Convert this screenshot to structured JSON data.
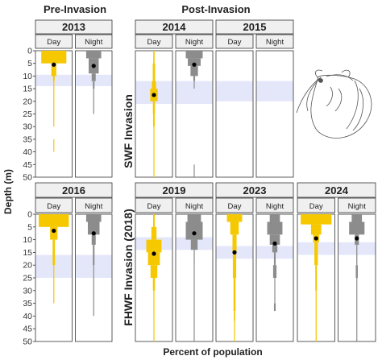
{
  "header": {
    "pre": "Pre-Invasion",
    "post": "Post-Invasion"
  },
  "axis": {
    "ylabel": "Depth (m)",
    "xlabel": "Percent of population"
  },
  "row_labels": {
    "row1": "SWF Invasion",
    "row2": "FHWF Invasion (2018)"
  },
  "colors": {
    "day": "#F5C800",
    "night": "#8C8C8C",
    "thermocline": "#E4E7FA",
    "strip": "#F0F0F0",
    "point": "#000000"
  },
  "chart_data": {
    "type": "bar",
    "orientation": "horizontal-mirrored",
    "ylim": [
      0,
      50
    ],
    "yticks": [
      0,
      5,
      10,
      15,
      20,
      25,
      30,
      35,
      40,
      45,
      50
    ],
    "ylabel": "Depth (m)",
    "xlabel": "Percent of population",
    "panel_labels": [
      "Day",
      "Night"
    ],
    "years": [
      {
        "year": "2013",
        "thermocline": [
          9.5,
          14
        ],
        "day": {
          "mean_depth": 5.5,
          "profile": [
            [
              0,
              5,
              0.75
            ],
            [
              5,
              10,
              0.15
            ],
            [
              10,
              12,
              0.05
            ],
            [
              12,
              20,
              0.03
            ],
            [
              20,
              30,
              0.015
            ],
            [
              35,
              40,
              0.01
            ]
          ]
        },
        "night": {
          "mean_depth": 6.0,
          "profile": [
            [
              0,
              3,
              0.45
            ],
            [
              3,
              9,
              0.3
            ],
            [
              9,
              12,
              0.12
            ],
            [
              12,
              15,
              0.05
            ],
            [
              15,
              25,
              0.02
            ]
          ]
        }
      },
      {
        "year": "2014",
        "thermocline": [
          12,
          21
        ],
        "day": {
          "mean_depth": 17.5,
          "profile": [
            [
              0,
              5,
              0.04
            ],
            [
              5,
              12,
              0.07
            ],
            [
              12,
              15,
              0.12
            ],
            [
              15,
              20,
              0.22
            ],
            [
              20,
              25,
              0.06
            ],
            [
              25,
              30,
              0.05
            ],
            [
              30,
              50,
              0.025
            ]
          ]
        },
        "night": {
          "mean_depth": 5.5,
          "profile": [
            [
              0,
              3,
              0.5
            ],
            [
              3,
              6,
              0.38
            ],
            [
              6,
              10,
              0.22
            ],
            [
              10,
              12,
              0.05
            ],
            [
              12,
              15,
              0.02
            ],
            [
              45,
              50,
              0.005
            ]
          ]
        }
      },
      {
        "year": "2015",
        "thermocline": [
          12,
          20
        ],
        "day": {
          "mean_depth": null,
          "profile": []
        },
        "night": {
          "mean_depth": null,
          "profile": []
        }
      },
      {
        "year": "2016",
        "thermocline": [
          16,
          25
        ],
        "day": {
          "mean_depth": 6.5,
          "profile": [
            [
              0,
              5,
              0.9
            ],
            [
              5,
              10,
              0.22
            ],
            [
              10,
              20,
              0.07
            ],
            [
              20,
              35,
              0.03
            ]
          ]
        },
        "night": {
          "mean_depth": 7.5,
          "profile": [
            [
              0,
              3,
              0.45
            ],
            [
              3,
              8,
              0.35
            ],
            [
              8,
              12,
              0.12
            ],
            [
              12,
              20,
              0.05
            ],
            [
              20,
              40,
              0.01
            ]
          ]
        }
      },
      {
        "year": "2019",
        "thermocline": [
          9,
          14
        ],
        "day": {
          "mean_depth": 15.5,
          "profile": [
            [
              0,
              5,
              0.05
            ],
            [
              5,
              10,
              0.15
            ],
            [
              10,
              15,
              0.45
            ],
            [
              15,
              20,
              0.35
            ],
            [
              20,
              25,
              0.2
            ],
            [
              25,
              30,
              0.06
            ],
            [
              30,
              40,
              0.03
            ],
            [
              40,
              50,
              0.02
            ]
          ]
        },
        "night": {
          "mean_depth": 7.5,
          "profile": [
            [
              0,
              3,
              0.4
            ],
            [
              3,
              10,
              0.5
            ],
            [
              10,
              14,
              0.2
            ],
            [
              14,
              20,
              0.03
            ],
            [
              20,
              50,
              0.01
            ]
          ]
        }
      },
      {
        "year": "2023",
        "thermocline": [
          12.5,
          17.5
        ],
        "day": {
          "mean_depth": 15.0,
          "profile": [
            [
              0,
              3,
              0.45
            ],
            [
              3,
              8,
              0.25
            ],
            [
              8,
              15,
              0.12
            ],
            [
              15,
              25,
              0.1
            ],
            [
              25,
              38,
              0.06
            ],
            [
              38,
              42,
              0.04
            ],
            [
              42,
              50,
              0.01
            ]
          ]
        },
        "night": {
          "mean_depth": 11.5,
          "profile": [
            [
              0,
              3,
              0.3
            ],
            [
              3,
              8,
              0.45
            ],
            [
              8,
              12,
              0.3
            ],
            [
              12,
              15,
              0.15
            ],
            [
              15,
              20,
              0.05
            ],
            [
              20,
              25,
              0.1
            ],
            [
              25,
              35,
              0.02
            ],
            [
              35,
              38,
              0.05
            ]
          ]
        }
      },
      {
        "year": "2024",
        "thermocline": [
          11,
          16
        ],
        "day": {
          "mean_depth": 9.5,
          "profile": [
            [
              0,
              4,
              0.9
            ],
            [
              4,
              8,
              0.3
            ],
            [
              8,
              11,
              0.18
            ],
            [
              11,
              20,
              0.1
            ],
            [
              20,
              30,
              0.05
            ],
            [
              30,
              50,
              0.03
            ]
          ]
        },
        "night": {
          "mean_depth": 9.5,
          "profile": [
            [
              0,
              3,
              0.3
            ],
            [
              3,
              8,
              0.45
            ],
            [
              8,
              12,
              0.12
            ],
            [
              12,
              20,
              0.03
            ],
            [
              20,
              25,
              0.06
            ],
            [
              25,
              50,
              0.02
            ]
          ]
        }
      }
    ]
  }
}
